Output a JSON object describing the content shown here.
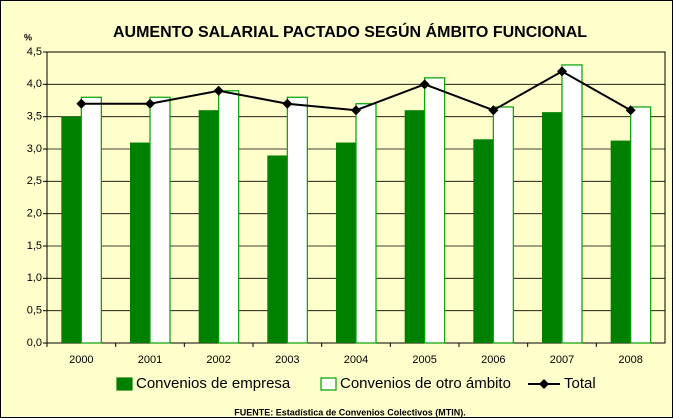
{
  "chart_data": {
    "type": "bar",
    "title": "AUMENTO SALARIAL PACTADO SEGÚN ÁMBITO FUNCIONAL",
    "y_label": "%",
    "source": "FUENTE: Estadística de Convenios Colectivos (MTIN).",
    "categories": [
      "2000",
      "2001",
      "2002",
      "2003",
      "2004",
      "2005",
      "2006",
      "2007",
      "2008"
    ],
    "series": [
      {
        "name": "Convenios de empresa",
        "type": "bar",
        "color": "#008000",
        "values": [
          3.5,
          3.1,
          3.6,
          2.9,
          3.1,
          3.6,
          3.15,
          3.57,
          3.13
        ]
      },
      {
        "name": "Convenios de otro ámbito",
        "type": "bar",
        "color": "#ffffff",
        "edge": "#00a000",
        "values": [
          3.8,
          3.8,
          3.9,
          3.8,
          3.7,
          4.1,
          3.65,
          4.3,
          3.65
        ]
      },
      {
        "name": "Total",
        "type": "line",
        "color": "#000000",
        "values": [
          3.7,
          3.7,
          3.9,
          3.7,
          3.6,
          4.0,
          3.6,
          4.2,
          3.6
        ]
      }
    ],
    "ylim": [
      0,
      4.5
    ],
    "yticks": [
      {
        "value": 0,
        "label": "0,0"
      },
      {
        "value": 0.5,
        "label": "0,5"
      },
      {
        "value": 1,
        "label": "1,0"
      },
      {
        "value": 1.5,
        "label": "1,5"
      },
      {
        "value": 2,
        "label": "2,0"
      },
      {
        "value": 2.5,
        "label": "2,5"
      },
      {
        "value": 3,
        "label": "3,0"
      },
      {
        "value": 3.5,
        "label": "3,5"
      },
      {
        "value": 4,
        "label": "4,0"
      },
      {
        "value": 4.5,
        "label": "4,5"
      }
    ],
    "grid": true,
    "legend": "bottom"
  }
}
